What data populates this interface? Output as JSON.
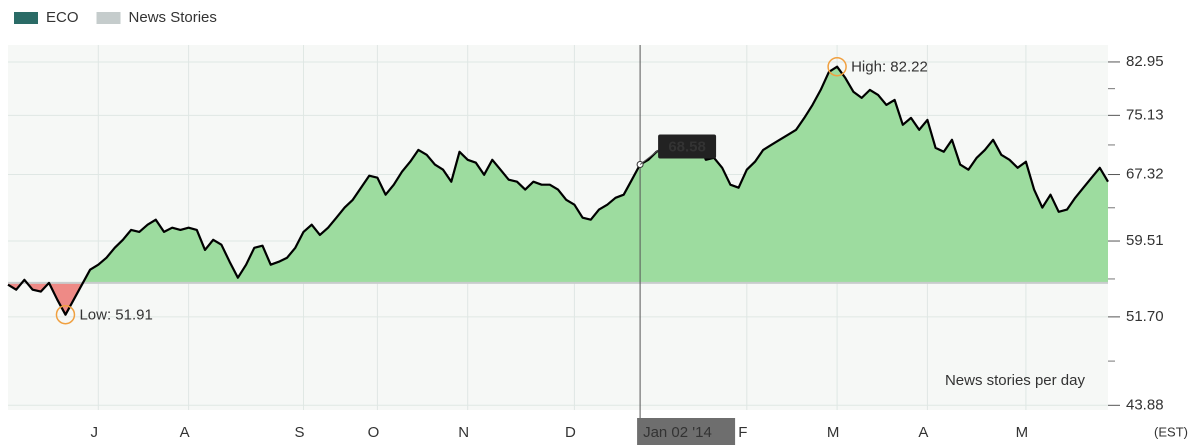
{
  "chart_data": {
    "type": "line",
    "legend": [
      {
        "name": "ECO",
        "color": "#2a6b66"
      },
      {
        "name": "News Stories",
        "color": "#c5cccc"
      }
    ],
    "series": [
      {
        "name": "ECO",
        "color": "#000000",
        "values": [
          54.88,
          54.37,
          55.38,
          54.37,
          54.18,
          55.06,
          53.37,
          51.91,
          53.37,
          54.88,
          56.43,
          56.95,
          57.7,
          58.77,
          59.64,
          60.75,
          60.52,
          61.34,
          61.91,
          60.52,
          61.0,
          60.75,
          61.0,
          60.75,
          58.54,
          59.64,
          59.11,
          57.27,
          55.6,
          56.95,
          58.77,
          59.0,
          56.95,
          57.27,
          57.7,
          58.77,
          60.52,
          61.34,
          60.19,
          61.0,
          62.14,
          63.31,
          64.24,
          65.7,
          67.17,
          66.92,
          64.85,
          66.06,
          67.68,
          68.94,
          70.47,
          69.83,
          68.57,
          67.93,
          66.43,
          70.22,
          69.19,
          68.81,
          67.29,
          69.19,
          67.93,
          66.68,
          66.43,
          65.46,
          66.43,
          66.06,
          66.06,
          65.46,
          64.24,
          63.66,
          62.14,
          61.91,
          63.08,
          63.66,
          64.48,
          64.85,
          66.68,
          68.58,
          69.19,
          70.22,
          70.73,
          70.47,
          71.54,
          70.47,
          72.05,
          69.19,
          69.44,
          68.17,
          66.06,
          65.7,
          67.93,
          68.94,
          70.47,
          71.13,
          71.8,
          72.47,
          73.14,
          74.78,
          76.6,
          78.76,
          81.43,
          82.22,
          80.53,
          78.47,
          77.6,
          78.76,
          78.03,
          76.6,
          77.32,
          73.82,
          74.78,
          73.14,
          74.5,
          70.73,
          70.22,
          71.8,
          68.57,
          67.93,
          69.44,
          70.47,
          71.8,
          69.83,
          69.19,
          68.17,
          68.94,
          65.46,
          63.31,
          64.85,
          62.83,
          63.08,
          64.48,
          65.7,
          66.92,
          68.17,
          66.43
        ]
      }
    ],
    "baseline": 55.06,
    "above_color": "#9ddc9f",
    "below_color": "#ee8a86",
    "xlim": [
      0,
      134
    ],
    "xticks": [
      {
        "value": 11,
        "label": "J"
      },
      {
        "value": 22,
        "label": "A"
      },
      {
        "value": 36,
        "label": "S"
      },
      {
        "value": 45,
        "label": "O"
      },
      {
        "value": 56,
        "label": "N"
      },
      {
        "value": 69,
        "label": "D"
      },
      {
        "value": 90,
        "label": "F"
      },
      {
        "value": 101,
        "label": "M"
      },
      {
        "value": 112,
        "label": "A"
      },
      {
        "value": 124,
        "label": "M"
      }
    ],
    "ylim": [
      43.5,
      85.6
    ],
    "yticks": [
      82.95,
      75.13,
      67.32,
      59.51,
      {
        "value": 51.7,
        "label": "51.70"
      },
      43.88
    ],
    "log_y": true,
    "grid": true,
    "annotations": [
      {
        "text": "High: 82.22",
        "x": 101,
        "y": 82.22
      },
      {
        "text": "Low: 51.91",
        "x": 7,
        "y": 51.91
      }
    ],
    "crosshair": {
      "x": 77,
      "label": "Jan 02 '14",
      "value": 68.58
    },
    "note": "News stories per day",
    "timezone": "(EST)"
  }
}
